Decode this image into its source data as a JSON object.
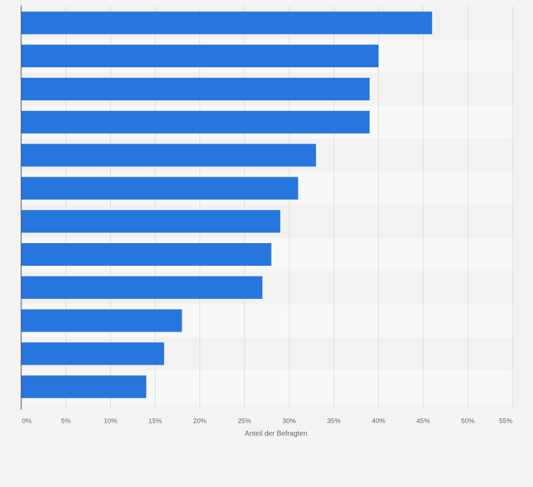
{
  "chart_data": {
    "type": "bar",
    "orientation": "horizontal",
    "categories": [
      "",
      "",
      "",
      "",
      "",
      "",
      "",
      "",
      "",
      "",
      "",
      ""
    ],
    "values": [
      46,
      40,
      39,
      39,
      33,
      31,
      29,
      28,
      27,
      18,
      16,
      14
    ],
    "unit": "%",
    "xlabel": "Anteil der Befragten",
    "ylabel": "",
    "xlim": [
      0,
      55
    ],
    "xticks": [
      0,
      5,
      10,
      15,
      20,
      25,
      30,
      35,
      40,
      45,
      50,
      55
    ],
    "tick_labels": [
      "0%",
      "5%",
      "10%",
      "15%",
      "20%",
      "25%",
      "30%",
      "35%",
      "40%",
      "45%",
      "50%",
      "55%"
    ],
    "grid": true,
    "legend": "none",
    "colors": {
      "bar": "#2776dd",
      "background": "#f3f3f3",
      "band_light": "#f8f8f8",
      "band_dark": "#f2f2f2",
      "grid": "#dcdcdc",
      "axis": "#444444",
      "text": "#666666"
    }
  }
}
